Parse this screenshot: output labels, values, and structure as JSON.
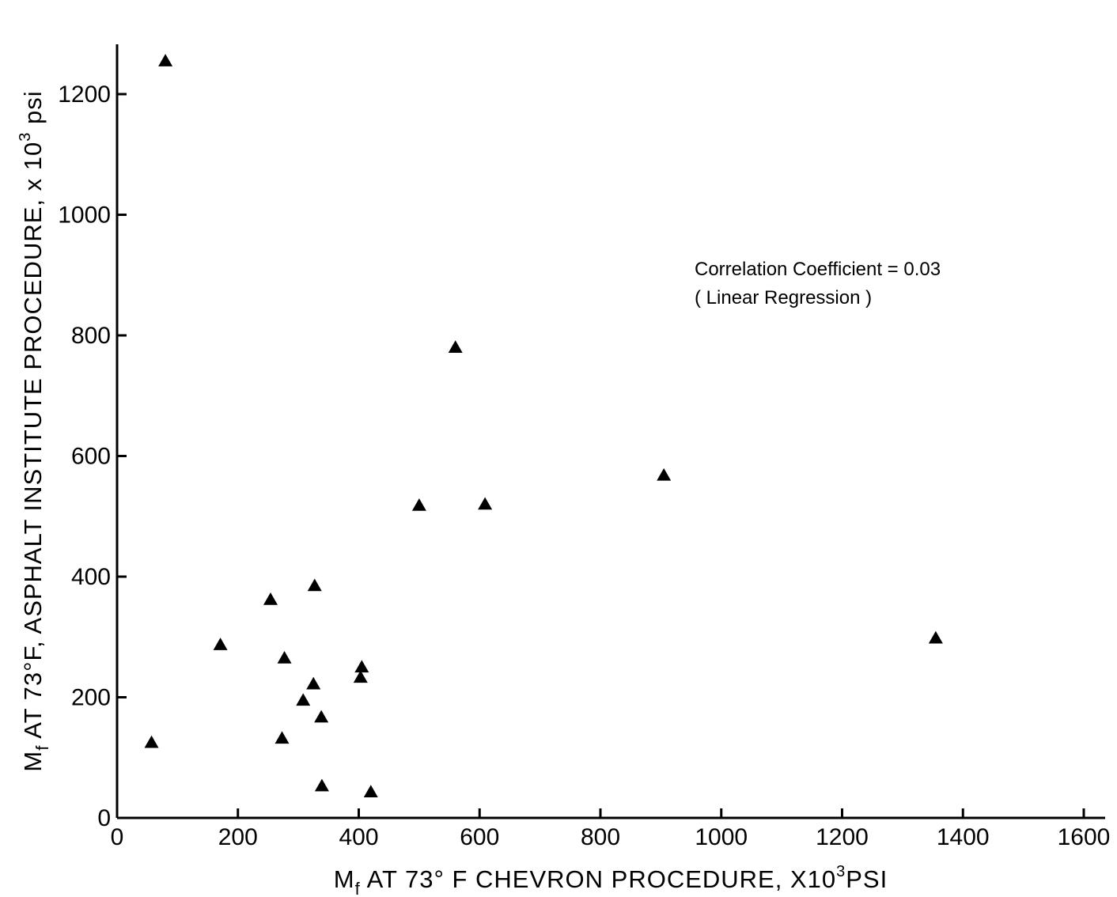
{
  "chart_data": {
    "type": "scatter",
    "xlabel": {
      "prefix": "M",
      "subscript": "f",
      "text": " AT 73° F CHEVRON PROCEDURE, X10",
      "superscript": "3",
      "suffix": "PSI"
    },
    "ylabel": {
      "prefix": "M",
      "subscript": "f",
      "text": " AT 73°F, ASPHALT INSTITUTE PROCEDURE, x 10",
      "superscript": "3",
      "suffix": " psi"
    },
    "xlim": [
      0,
      1600
    ],
    "ylim": [
      0,
      1280
    ],
    "xticks": [
      0,
      200,
      400,
      600,
      800,
      1000,
      1200,
      1400,
      1600
    ],
    "yticks": [
      0,
      200,
      400,
      600,
      800,
      1000,
      1200
    ],
    "xtick_labels": [
      "0",
      "200",
      "400",
      "600",
      "800",
      "1000",
      "1200",
      "1400",
      "1600"
    ],
    "ytick_labels": [
      "0",
      "200",
      "400",
      "600",
      "800",
      "1000",
      "1200"
    ],
    "annotation": {
      "line1": "Correlation Coefficient = 0.03",
      "line2": "( Linear Regression )"
    },
    "marker": "triangle",
    "grid": false,
    "points": [
      {
        "x": 80,
        "y": 1255
      },
      {
        "x": 57,
        "y": 125
      },
      {
        "x": 171,
        "y": 287
      },
      {
        "x": 254,
        "y": 362
      },
      {
        "x": 277,
        "y": 265
      },
      {
        "x": 273,
        "y": 132
      },
      {
        "x": 308,
        "y": 195
      },
      {
        "x": 325,
        "y": 222
      },
      {
        "x": 327,
        "y": 385
      },
      {
        "x": 338,
        "y": 167
      },
      {
        "x": 339,
        "y": 53
      },
      {
        "x": 403,
        "y": 233
      },
      {
        "x": 405,
        "y": 250
      },
      {
        "x": 420,
        "y": 43
      },
      {
        "x": 500,
        "y": 518
      },
      {
        "x": 560,
        "y": 780
      },
      {
        "x": 609,
        "y": 520
      },
      {
        "x": 905,
        "y": 568
      },
      {
        "x": 1355,
        "y": 298
      }
    ]
  }
}
